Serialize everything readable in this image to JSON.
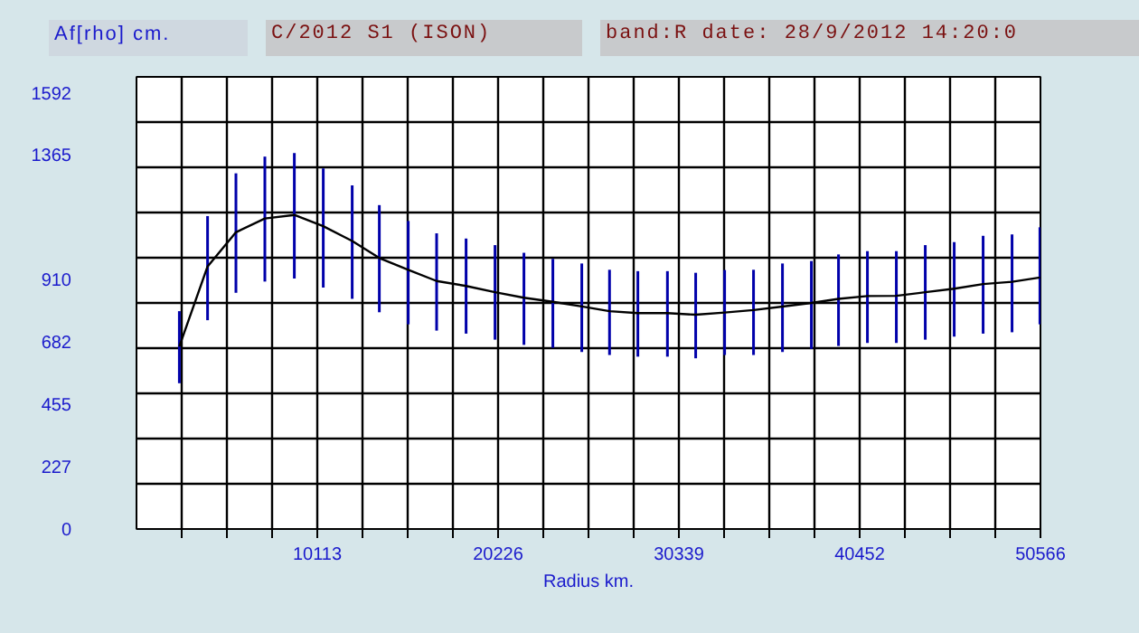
{
  "chart_data": {
    "type": "line",
    "title": "C/2012 S1 (ISON)",
    "subtitle": "band:R date: 28/9/2012 14:20:0",
    "xlabel": "Radius km.",
    "ylabel": "Af[rho] cm.",
    "x": [
      2397,
      3975,
      5562,
      7180,
      8829,
      10447,
      12065,
      13583,
      15200,
      16788,
      18436,
      20055,
      21672,
      23290,
      24908,
      26460,
      28045,
      29699,
      31280,
      32898,
      34515,
      36134,
      37752,
      39269,
      40886,
      42504,
      44122,
      45740,
      47358,
      48976,
      50535
    ],
    "series": [
      {
        "color": "#000000",
        "values": [
          666,
          958,
          1083,
          1133,
          1146,
          1105,
          1051,
          989,
          946,
          905,
          887,
          864,
          844,
          829,
          812,
          795,
          788,
          788,
          782,
          790,
          799,
          812,
          825,
          840,
          850,
          851,
          864,
          877,
          894,
          902,
          918
        ],
        "errors": [
          [
            532,
            795
          ],
          [
            762,
            1142
          ],
          [
            862,
            1298
          ],
          [
            903,
            1359
          ],
          [
            914,
            1372
          ],
          [
            881,
            1316
          ],
          [
            840,
            1254
          ],
          [
            791,
            1182
          ],
          [
            747,
            1124
          ],
          [
            724,
            1079
          ],
          [
            713,
            1060
          ],
          [
            691,
            1036
          ],
          [
            672,
            1008
          ],
          [
            661,
            986
          ],
          [
            646,
            969
          ],
          [
            635,
            946
          ],
          [
            629,
            941
          ],
          [
            629,
            941
          ],
          [
            623,
            935
          ],
          [
            635,
            945
          ],
          [
            635,
            946
          ],
          [
            646,
            969
          ],
          [
            657,
            978
          ],
          [
            668,
            1002
          ],
          [
            679,
            1014
          ],
          [
            679,
            1014
          ],
          [
            691,
            1036
          ],
          [
            702,
            1047
          ],
          [
            713,
            1070
          ],
          [
            718,
            1075
          ],
          [
            747,
            1101
          ]
        ]
      }
    ],
    "xlim": [
      0,
      50566
    ],
    "ylim": [
      0,
      1650
    ],
    "xticks": [
      {
        "value": 2528,
        "label": null
      },
      {
        "value": 5057,
        "label": null
      },
      {
        "value": 7585,
        "label": null
      },
      10113,
      {
        "value": 12641,
        "label": null
      },
      {
        "value": 15170,
        "label": null
      },
      {
        "value": 17698,
        "label": null
      },
      20226,
      {
        "value": 22754,
        "label": null
      },
      {
        "value": 25283,
        "label": null
      },
      {
        "value": 27811,
        "label": null
      },
      30339,
      {
        "value": 32867,
        "label": null
      },
      {
        "value": 35396,
        "label": null
      },
      {
        "value": 37924,
        "label": null
      },
      40452,
      {
        "value": 42980,
        "label": null
      },
      {
        "value": 45509,
        "label": null
      },
      {
        "value": 48037,
        "label": null
      },
      50566
    ],
    "yticks": [
      0,
      {
        "value": 165,
        "label": null
      },
      227,
      {
        "value": 330,
        "label": null
      },
      455,
      {
        "value": 495,
        "label": null
      },
      {
        "value": 660,
        "label": null
      },
      682,
      {
        "value": 825,
        "label": null
      },
      910,
      {
        "value": 990,
        "label": null
      },
      {
        "value": 1155,
        "label": null
      },
      {
        "value": 1320,
        "label": null
      },
      1365,
      {
        "value": 1485,
        "label": null
      },
      1592
    ],
    "grid": true
  }
}
